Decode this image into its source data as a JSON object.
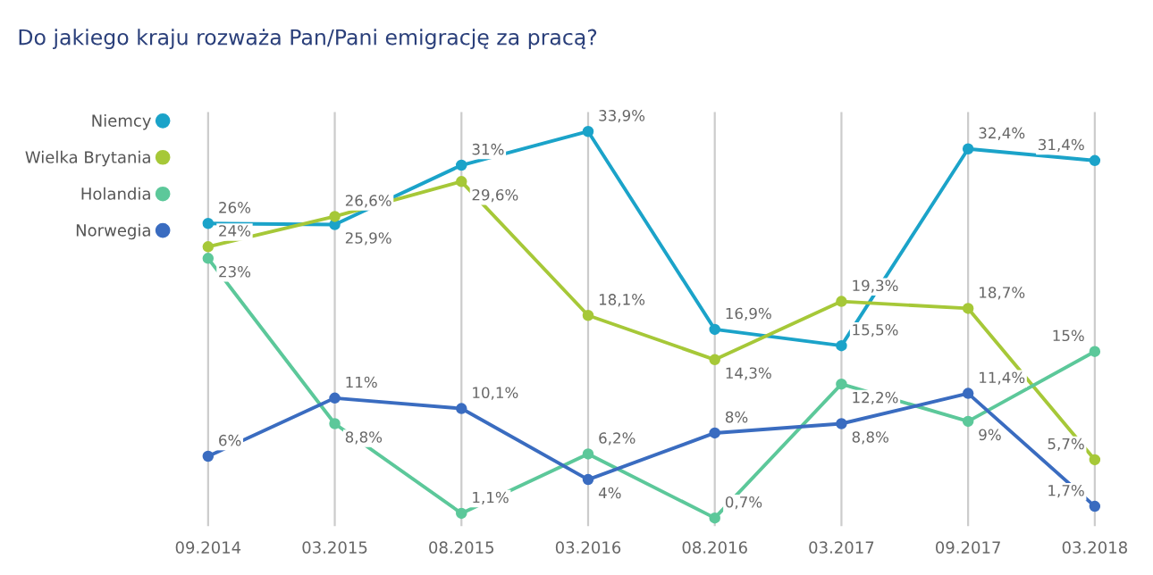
{
  "chart_data": {
    "type": "line",
    "title": "Do jakiego kraju rozważa Pan/Pani emigrację za pracą?",
    "categories": [
      "09.2014",
      "03.2015",
      "08.2015",
      "03.2016",
      "08.2016",
      "03.2017",
      "09.2017",
      "03.2018"
    ],
    "series": [
      {
        "name": "Niemcy",
        "color": "#1ba3c9",
        "values": [
          26,
          25.9,
          31,
          33.9,
          16.9,
          15.5,
          32.4,
          31.4
        ],
        "value_labels": [
          "26%",
          "25,9%",
          "31%",
          "33,9%",
          "16,9%",
          "15,5%",
          "32,4%",
          "31,4%"
        ]
      },
      {
        "name": "Wielka Brytania",
        "color": "#a6c838",
        "values": [
          24,
          26.6,
          29.6,
          18.1,
          14.3,
          19.3,
          18.7,
          5.7
        ],
        "value_labels": [
          "24%",
          "26,6%",
          "29,6%",
          "18,1%",
          "14,3%",
          "19,3%",
          "18,7%",
          "5,7%"
        ]
      },
      {
        "name": "Holandia",
        "color": "#5cc89a",
        "values": [
          23,
          8.8,
          1.1,
          6.2,
          0.7,
          12.2,
          9,
          15
        ],
        "value_labels": [
          "23%",
          "8,8%",
          "1,1%",
          "6,2%",
          "0,7%",
          "12,2%",
          "9%",
          "15%"
        ]
      },
      {
        "name": "Norwegia",
        "color": "#3a6cc0",
        "values": [
          6,
          11,
          10.1,
          4,
          8,
          8.8,
          11.4,
          1.7
        ],
        "value_labels": [
          "6%",
          "11%",
          "10,1%",
          "4%",
          "8%",
          "8,8%",
          "11,4%",
          "1,7%"
        ]
      }
    ],
    "grid": "x",
    "legend": "left",
    "marker": "circle",
    "line_style": "solid"
  }
}
